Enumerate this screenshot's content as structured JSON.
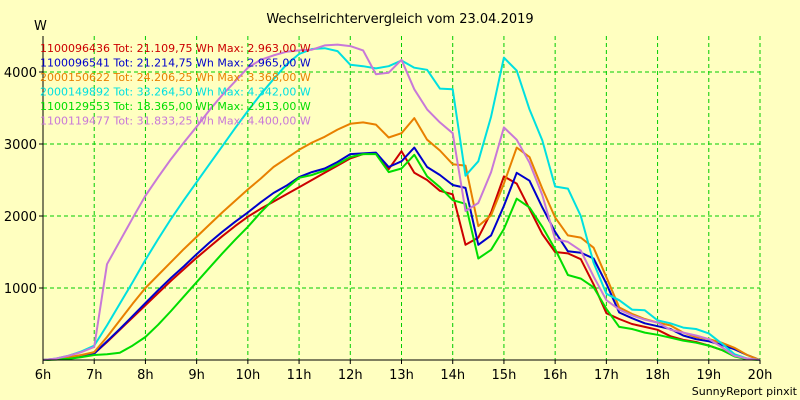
{
  "chart_data": {
    "type": "line",
    "title": "Wechselrichtervergleich vom 23.04.2019",
    "ylabel": "W",
    "footer": "SunnyReport pinxit",
    "grid": true,
    "legend_position": "top-left",
    "ylim": [
      0,
      4500
    ],
    "xlim": [
      6,
      20
    ],
    "y_ticks": [
      1000,
      2000,
      3000,
      4000
    ],
    "x_ticks": [
      {
        "v": 6,
        "label": "6h"
      },
      {
        "v": 7,
        "label": "7h"
      },
      {
        "v": 8,
        "label": "8h"
      },
      {
        "v": 9,
        "label": "9h"
      },
      {
        "v": 10,
        "label": "10h"
      },
      {
        "v": 11,
        "label": "11h"
      },
      {
        "v": 12,
        "label": "12h"
      },
      {
        "v": 13,
        "label": "13h"
      },
      {
        "v": 14,
        "label": "14h"
      },
      {
        "v": 15,
        "label": "15h"
      },
      {
        "v": 16,
        "label": "16h"
      },
      {
        "v": 17,
        "label": "17h"
      },
      {
        "v": 18,
        "label": "18h"
      },
      {
        "v": 19,
        "label": "19h"
      },
      {
        "v": 20,
        "label": "20h"
      }
    ],
    "x": [
      6.0,
      6.25,
      6.5,
      6.75,
      7.0,
      7.25,
      7.5,
      7.75,
      8.0,
      8.25,
      8.5,
      8.75,
      9.0,
      9.25,
      9.5,
      9.75,
      10.0,
      10.25,
      10.5,
      10.75,
      11.0,
      11.25,
      11.5,
      11.75,
      12.0,
      12.25,
      12.5,
      12.75,
      13.0,
      13.25,
      13.5,
      13.75,
      14.0,
      14.25,
      14.5,
      14.75,
      15.0,
      15.25,
      15.5,
      15.75,
      16.0,
      16.25,
      16.5,
      16.75,
      17.0,
      17.25,
      17.5,
      17.75,
      18.0,
      18.25,
      18.5,
      18.75,
      19.0,
      19.25,
      19.5,
      19.75,
      20.0
    ],
    "series": [
      {
        "name": "1100096436",
        "legend": "1100096436 Tot: 21.109,75 Wh Max: 2.963,00 W",
        "color": "#cc0000",
        "values": [
          0,
          10,
          30,
          60,
          90,
          250,
          420,
          590,
          760,
          930,
          1100,
          1260,
          1420,
          1570,
          1720,
          1860,
          1990,
          2100,
          2200,
          2300,
          2400,
          2500,
          2600,
          2700,
          2800,
          2860,
          2870,
          2650,
          2900,
          2600,
          2500,
          2350,
          2300,
          1600,
          1700,
          2050,
          2550,
          2450,
          2100,
          1750,
          1500,
          1480,
          1400,
          1050,
          650,
          570,
          500,
          460,
          420,
          330,
          280,
          250,
          200,
          140,
          60,
          20,
          0
        ]
      },
      {
        "name": "1100096541",
        "legend": "1100096541 Tot: 21.214,75 Wh Max: 2.965,00 W",
        "color": "#0000cc",
        "values": [
          0,
          10,
          30,
          60,
          90,
          260,
          430,
          610,
          790,
          970,
          1140,
          1300,
          1470,
          1630,
          1780,
          1920,
          2050,
          2190,
          2320,
          2420,
          2540,
          2610,
          2660,
          2750,
          2860,
          2870,
          2880,
          2680,
          2760,
          2950,
          2680,
          2570,
          2430,
          2390,
          1600,
          1730,
          2140,
          2600,
          2490,
          2120,
          1780,
          1510,
          1490,
          1410,
          1060,
          660,
          580,
          510,
          470,
          430,
          340,
          290,
          260,
          210,
          150,
          70,
          0
        ]
      },
      {
        "name": "2000150622",
        "legend": "2000150622 Tot: 24.206,25 Wh Max: 3.368,00 W",
        "color": "#e88000",
        "values": [
          0,
          15,
          40,
          70,
          110,
          320,
          550,
          780,
          1000,
          1180,
          1360,
          1540,
          1710,
          1880,
          2050,
          2210,
          2370,
          2520,
          2680,
          2800,
          2920,
          3020,
          3100,
          3200,
          3280,
          3300,
          3270,
          3090,
          3150,
          3360,
          3060,
          2910,
          2720,
          2700,
          1860,
          2010,
          2450,
          2950,
          2820,
          2380,
          1980,
          1730,
          1700,
          1560,
          1150,
          730,
          640,
          570,
          520,
          480,
          380,
          320,
          290,
          240,
          170,
          70,
          0
        ]
      },
      {
        "name": "2000149892",
        "legend": "2000149892 Tot: 33.264,50 Wh Max: 4.342,00 W",
        "color": "#00e0e0",
        "values": [
          0,
          20,
          60,
          120,
          200,
          480,
          780,
          1080,
          1390,
          1680,
          1960,
          2220,
          2470,
          2720,
          2970,
          3220,
          3460,
          3690,
          3900,
          4100,
          4250,
          4320,
          4330,
          4290,
          4100,
          4080,
          4050,
          4080,
          4160,
          4060,
          4030,
          3770,
          3760,
          2560,
          2760,
          3380,
          4200,
          4020,
          3480,
          3050,
          2410,
          2380,
          2000,
          1350,
          920,
          830,
          700,
          690,
          550,
          510,
          450,
          430,
          370,
          230,
          80,
          20,
          0
        ]
      },
      {
        "name": "1100129553",
        "legend": "1100129553 Tot: 18.365,00 Wh Max: 2.913,00 W",
        "color": "#00dd00",
        "values": [
          0,
          5,
          15,
          40,
          70,
          80,
          100,
          200,
          320,
          490,
          680,
          880,
          1080,
          1280,
          1480,
          1670,
          1850,
          2050,
          2230,
          2380,
          2530,
          2570,
          2630,
          2720,
          2820,
          2860,
          2860,
          2610,
          2660,
          2850,
          2550,
          2400,
          2220,
          2170,
          1410,
          1530,
          1820,
          2240,
          2120,
          1850,
          1540,
          1180,
          1130,
          1010,
          710,
          460,
          430,
          380,
          350,
          310,
          270,
          240,
          200,
          140,
          50,
          10,
          0
        ]
      },
      {
        "name": "1100119477",
        "legend": "1100119477 Tot: 31.833,25 Wh Max: 4.400,00 W",
        "color": "#c878d8",
        "values": [
          0,
          20,
          60,
          110,
          180,
          1330,
          1650,
          1970,
          2280,
          2540,
          2790,
          3020,
          3240,
          3470,
          3680,
          3870,
          4060,
          4170,
          4230,
          4280,
          4300,
          4310,
          4370,
          4380,
          4360,
          4300,
          3970,
          3990,
          4170,
          3760,
          3480,
          3300,
          3150,
          2070,
          2180,
          2610,
          3230,
          3060,
          2740,
          2290,
          1680,
          1640,
          1520,
          1160,
          830,
          700,
          620,
          560,
          520,
          420,
          380,
          340,
          290,
          180,
          60,
          20,
          0
        ]
      }
    ]
  }
}
